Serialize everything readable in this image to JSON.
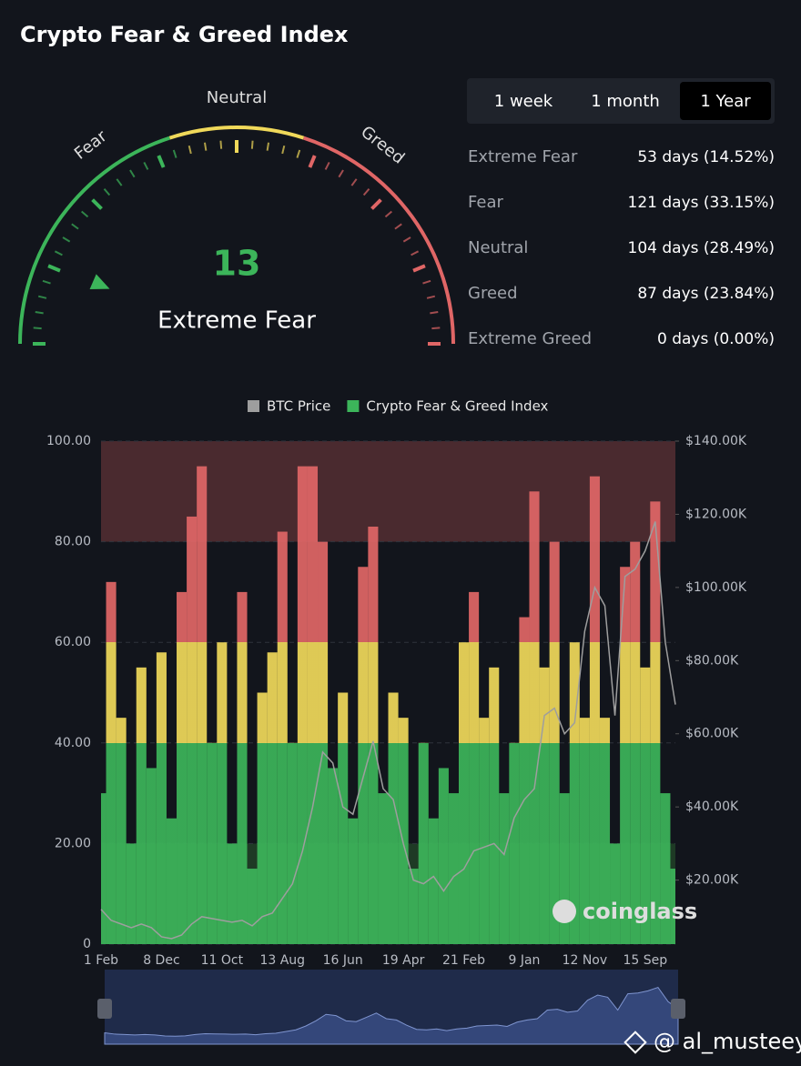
{
  "header": {
    "title": "Crypto Fear & Greed Index"
  },
  "gauge": {
    "value": 13,
    "value_label": "Extreme Fear",
    "range": [
      0,
      100
    ],
    "labels": [
      "Fear",
      "Neutral",
      "Greed"
    ]
  },
  "tabs": {
    "items": [
      "1 week",
      "1 month",
      "1 Year"
    ],
    "selected": 2
  },
  "stats": [
    {
      "label": "Extreme Fear",
      "value": "53 days (14.52%)"
    },
    {
      "label": "Fear",
      "value": "121 days (33.15%)"
    },
    {
      "label": "Neutral",
      "value": "104 days (28.49%)"
    },
    {
      "label": "Greed",
      "value": "87 days (23.84%)"
    },
    {
      "label": "Extreme Greed",
      "value": "0 days (0.00%)"
    }
  ],
  "chart_data": {
    "type": "area",
    "categories": [
      "1 Feb",
      null,
      null,
      null,
      null,
      null,
      "8 Dec",
      null,
      null,
      null,
      null,
      null,
      "11 Oct",
      null,
      null,
      null,
      null,
      null,
      "13 Aug",
      null,
      null,
      null,
      null,
      null,
      "16 Jun",
      null,
      null,
      null,
      null,
      null,
      "19 Apr",
      null,
      null,
      null,
      null,
      null,
      "21 Feb",
      null,
      null,
      null,
      null,
      null,
      "9 Jan",
      null,
      null,
      null,
      null,
      null,
      "12 Nov",
      null,
      null,
      null,
      null,
      null,
      "15 Sep",
      null,
      null,
      null
    ],
    "series": [
      {
        "name": "BTC Price",
        "color": "#9e9e9e",
        "axis": "y2",
        "values": [
          12000,
          9000,
          8000,
          7000,
          8000,
          7000,
          4500,
          4000,
          5000,
          8000,
          10000,
          9500,
          9000,
          8500,
          9000,
          7500,
          10000,
          11000,
          15000,
          19000,
          28000,
          40000,
          55000,
          52000,
          40000,
          38000,
          48000,
          58000,
          45000,
          42000,
          30000,
          20000,
          19000,
          21000,
          17000,
          21000,
          23000,
          28000,
          29000,
          30000,
          27000,
          37000,
          42000,
          45000,
          65000,
          67000,
          60000,
          63000,
          88000,
          100000,
          95000,
          65000,
          103000,
          105000,
          110000,
          118000,
          85000,
          68000
        ]
      },
      {
        "name": "Crypto Fear & Greed Index",
        "color": "#3cb55a",
        "values": [
          30,
          72,
          45,
          20,
          55,
          35,
          58,
          25,
          70,
          85,
          95,
          40,
          60,
          20,
          70,
          15,
          50,
          58,
          82,
          40,
          95,
          95,
          80,
          35,
          50,
          25,
          75,
          83,
          30,
          50,
          45,
          15,
          40,
          25,
          35,
          30,
          60,
          70,
          45,
          55,
          30,
          40,
          65,
          90,
          55,
          80,
          30,
          60,
          45,
          93,
          45,
          20,
          75,
          80,
          55,
          88,
          30,
          15
        ]
      }
    ],
    "bands": [
      {
        "from": 0,
        "to": 40,
        "color": "#3cb55a"
      },
      {
        "from": 40,
        "to": 60,
        "color": "#f0d95a"
      },
      {
        "from": 60,
        "to": 100,
        "color": "#e06666"
      }
    ],
    "background_bands": [
      {
        "from": 80,
        "to": 100,
        "color": "#4a2a2f"
      },
      {
        "from": 0,
        "to": 20,
        "color": "#1e3a25"
      }
    ],
    "ylim": [
      0,
      100
    ],
    "yticks": [
      0,
      {
        "value": 20,
        "label": "20.00"
      },
      {
        "value": 40,
        "label": "40.00"
      },
      {
        "value": 60,
        "label": "60.00"
      },
      {
        "value": 80,
        "label": "80.00"
      },
      {
        "value": 100,
        "label": "100.00"
      }
    ],
    "y2lim": [
      2500,
      140000
    ],
    "y2ticks": [
      {
        "value": 20000,
        "label": "$20.00K"
      },
      {
        "value": 40000,
        "label": "$40.00K"
      },
      {
        "value": 60000,
        "label": "$60.00K"
      },
      {
        "value": 80000,
        "label": "$80.00K"
      },
      {
        "value": 100000,
        "label": "$100.00K"
      },
      {
        "value": 120000,
        "label": "$120.00K"
      },
      {
        "value": 140000,
        "label": "$140.00K"
      }
    ],
    "grid": true,
    "legend": "top"
  },
  "watermarks": [
    "coinglass",
    "@ al_musteey"
  ]
}
